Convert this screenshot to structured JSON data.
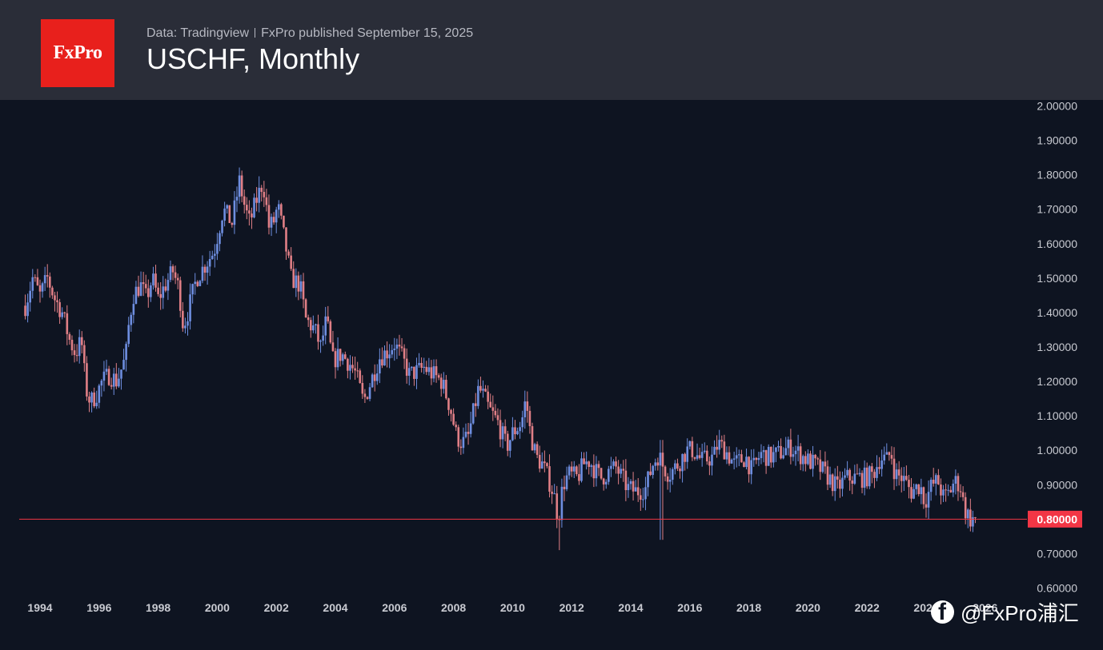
{
  "header": {
    "logo_text": "FxPro",
    "data_source": "Data: Tradingview",
    "published": "FxPro published September 15, 2025",
    "title": "USCHF, Monthly"
  },
  "watermark": {
    "handle": "@FxPro浦汇",
    "icon": "facebook-icon"
  },
  "colors": {
    "up": "#6e8ee0",
    "down": "#e07f86",
    "price_line": "#f23645",
    "background": "#0e1421",
    "header": "#2a2d38",
    "logo": "#e8201c"
  },
  "chart_data": {
    "type": "candlestick",
    "title": "USCHF, Monthly",
    "interval": "Monthly",
    "ylim": [
      0.6,
      2.0
    ],
    "yticks": [
      "2.00000",
      "1.90000",
      "1.80000",
      "1.70000",
      "1.60000",
      "1.50000",
      "1.40000",
      "1.30000",
      "1.20000",
      "1.10000",
      "1.00000",
      "0.90000",
      "0.80000",
      "0.70000",
      "0.60000"
    ],
    "xlim": [
      1993.5,
      2026.0
    ],
    "xticks": [
      "1994",
      "1996",
      "1998",
      "2000",
      "2002",
      "2004",
      "2006",
      "2008",
      "2010",
      "2012",
      "2014",
      "2016",
      "2018",
      "2020",
      "2022",
      "2024",
      "2026"
    ],
    "current_price": 0.8,
    "current_price_label": "0.80000",
    "anchors": [
      [
        1993.5,
        1.42
      ],
      [
        1993.75,
        1.5
      ],
      [
        1994.0,
        1.45
      ],
      [
        1994.25,
        1.5
      ],
      [
        1994.5,
        1.44
      ],
      [
        1994.75,
        1.4
      ],
      [
        1995.0,
        1.32
      ],
      [
        1995.2,
        1.28
      ],
      [
        1995.4,
        1.32
      ],
      [
        1995.55,
        1.18
      ],
      [
        1995.7,
        1.14
      ],
      [
        1995.9,
        1.16
      ],
      [
        1996.1,
        1.2
      ],
      [
        1996.35,
        1.22
      ],
      [
        1996.6,
        1.2
      ],
      [
        1996.9,
        1.27
      ],
      [
        1997.0,
        1.36
      ],
      [
        1997.15,
        1.45
      ],
      [
        1997.4,
        1.48
      ],
      [
        1997.6,
        1.44
      ],
      [
        1997.8,
        1.5
      ],
      [
        1998.0,
        1.44
      ],
      [
        1998.3,
        1.49
      ],
      [
        1998.5,
        1.52
      ],
      [
        1998.7,
        1.47
      ],
      [
        1998.85,
        1.36
      ],
      [
        1999.0,
        1.4
      ],
      [
        1999.3,
        1.5
      ],
      [
        1999.6,
        1.54
      ],
      [
        1999.9,
        1.58
      ],
      [
        2000.2,
        1.7
      ],
      [
        2000.5,
        1.66
      ],
      [
        2000.75,
        1.78
      ],
      [
        2000.95,
        1.7
      ],
      [
        2001.1,
        1.66
      ],
      [
        2001.3,
        1.72
      ],
      [
        2001.55,
        1.78
      ],
      [
        2001.75,
        1.65
      ],
      [
        2001.9,
        1.66
      ],
      [
        2002.05,
        1.71
      ],
      [
        2002.3,
        1.6
      ],
      [
        2002.5,
        1.5
      ],
      [
        2002.8,
        1.48
      ],
      [
        2003.0,
        1.38
      ],
      [
        2003.3,
        1.35
      ],
      [
        2003.5,
        1.3
      ],
      [
        2003.7,
        1.38
      ],
      [
        2003.9,
        1.26
      ],
      [
        2004.2,
        1.28
      ],
      [
        2004.5,
        1.25
      ],
      [
        2004.7,
        1.22
      ],
      [
        2004.95,
        1.14
      ],
      [
        2005.2,
        1.2
      ],
      [
        2005.5,
        1.27
      ],
      [
        2005.8,
        1.29
      ],
      [
        2006.0,
        1.31
      ],
      [
        2006.3,
        1.26
      ],
      [
        2006.5,
        1.22
      ],
      [
        2006.8,
        1.23
      ],
      [
        2007.0,
        1.24
      ],
      [
        2007.3,
        1.22
      ],
      [
        2007.6,
        1.2
      ],
      [
        2007.9,
        1.12
      ],
      [
        2008.1,
        1.04
      ],
      [
        2008.3,
        1.02
      ],
      [
        2008.5,
        1.04
      ],
      [
        2008.7,
        1.12
      ],
      [
        2008.85,
        1.18
      ],
      [
        2009.0,
        1.16
      ],
      [
        2009.2,
        1.12
      ],
      [
        2009.5,
        1.08
      ],
      [
        2009.8,
        1.01
      ],
      [
        2010.0,
        1.05
      ],
      [
        2010.3,
        1.08
      ],
      [
        2010.45,
        1.15
      ],
      [
        2010.6,
        1.05
      ],
      [
        2010.8,
        0.98
      ],
      [
        2011.0,
        0.96
      ],
      [
        2011.2,
        0.92
      ],
      [
        2011.4,
        0.87
      ],
      [
        2011.55,
        0.8
      ],
      [
        2011.7,
        0.9
      ],
      [
        2011.9,
        0.93
      ],
      [
        2012.2,
        0.92
      ],
      [
        2012.4,
        0.96
      ],
      [
        2012.6,
        0.97
      ],
      [
        2012.8,
        0.94
      ],
      [
        2013.0,
        0.92
      ],
      [
        2013.3,
        0.94
      ],
      [
        2013.5,
        0.95
      ],
      [
        2013.7,
        0.92
      ],
      [
        2013.9,
        0.89
      ],
      [
        2014.2,
        0.88
      ],
      [
        2014.5,
        0.89
      ],
      [
        2014.75,
        0.96
      ],
      [
        2014.95,
        0.99
      ],
      [
        2015.05,
        0.96
      ],
      [
        2015.3,
        0.93
      ],
      [
        2015.6,
        0.96
      ],
      [
        2015.9,
        1.0
      ],
      [
        2016.1,
        1.0
      ],
      [
        2016.4,
        0.97
      ],
      [
        2016.8,
        0.98
      ],
      [
        2016.95,
        1.02
      ],
      [
        2017.2,
        1.0
      ],
      [
        2017.5,
        0.96
      ],
      [
        2017.7,
        0.97
      ],
      [
        2017.9,
        0.98
      ],
      [
        2018.1,
        0.94
      ],
      [
        2018.4,
        0.99
      ],
      [
        2018.7,
        0.98
      ],
      [
        2019.0,
        0.99
      ],
      [
        2019.4,
        1.01
      ],
      [
        2019.7,
        0.99
      ],
      [
        2020.0,
        0.97
      ],
      [
        2020.2,
        0.96
      ],
      [
        2020.5,
        0.94
      ],
      [
        2020.8,
        0.91
      ],
      [
        2021.0,
        0.89
      ],
      [
        2021.3,
        0.92
      ],
      [
        2021.6,
        0.92
      ],
      [
        2021.9,
        0.92
      ],
      [
        2022.2,
        0.93
      ],
      [
        2022.45,
        0.98
      ],
      [
        2022.7,
        0.97
      ],
      [
        2022.8,
        1.0
      ],
      [
        2022.95,
        0.93
      ],
      [
        2023.2,
        0.92
      ],
      [
        2023.5,
        0.88
      ],
      [
        2023.8,
        0.9
      ],
      [
        2023.95,
        0.85
      ],
      [
        2024.2,
        0.9
      ],
      [
        2024.4,
        0.91
      ],
      [
        2024.6,
        0.86
      ],
      [
        2024.8,
        0.88
      ],
      [
        2024.95,
        0.91
      ],
      [
        2025.15,
        0.9
      ],
      [
        2025.3,
        0.83
      ],
      [
        2025.5,
        0.8
      ],
      [
        2025.7,
        0.8
      ]
    ]
  }
}
